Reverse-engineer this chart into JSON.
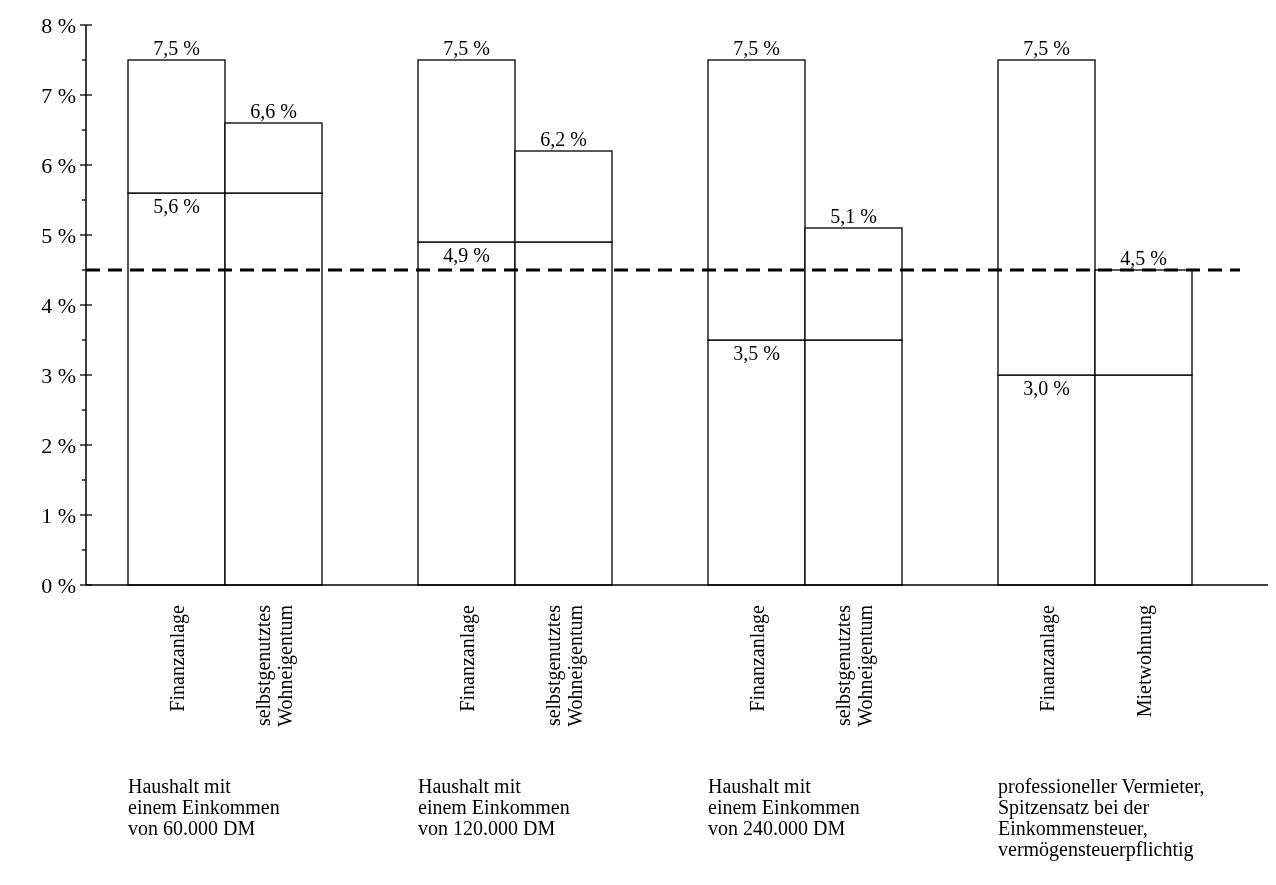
{
  "chart_data": {
    "type": "bar",
    "stacked": true,
    "categories": [
      "Finanzanlage",
      "selbstgenutztes\nWohneigentum",
      "Finanzanlage",
      "selbstgenutztes\nWohneigentum",
      "Finanzanlage",
      "selbstgenutztes\nWohneigentum",
      "Finanzanlage",
      "Mietwohnung"
    ],
    "series": [
      {
        "color": "#ffffff",
        "values": [
          5.6,
          5.6,
          4.9,
          4.9,
          3.5,
          3.5,
          3.0,
          3.0
        ],
        "value_labels": [
          "5,6 %",
          null,
          "4,9 %",
          null,
          "3,5 %",
          null,
          "3,0 %",
          null
        ]
      },
      {
        "color": "#ffffff",
        "values": [
          1.9,
          1.0,
          2.6,
          1.3,
          4.0,
          1.6,
          4.5,
          1.5
        ]
      }
    ],
    "totals": [
      "7,5 %",
      "6,6 %",
      "7,5 %",
      "6,2 %",
      "7,5 %",
      "5,1 %",
      "7,5 %",
      "4,5 %"
    ],
    "ylim": [
      0,
      8
    ],
    "yticks": [
      {
        "value": 0,
        "label": "0 %"
      },
      {
        "value": 0.5,
        "label": null
      },
      {
        "value": 1,
        "label": "1 %"
      },
      {
        "value": 1.5,
        "label": null
      },
      {
        "value": 2,
        "label": "2 %"
      },
      {
        "value": 2.5,
        "label": null
      },
      {
        "value": 3,
        "label": "3 %"
      },
      {
        "value": 3.5,
        "label": null
      },
      {
        "value": 4,
        "label": "4 %"
      },
      {
        "value": 4.5,
        "label": null
      },
      {
        "value": 5,
        "label": "5 %"
      },
      {
        "value": 5.5,
        "label": null
      },
      {
        "value": 6,
        "label": "6 %"
      },
      {
        "value": 6.5,
        "label": null
      },
      {
        "value": 7,
        "label": "7 %"
      },
      {
        "value": 7.5,
        "label": null
      },
      {
        "value": 8,
        "label": "8 %"
      }
    ],
    "ref_lines": [
      {
        "axis": "y",
        "value": 4.5,
        "line_style": "dashed",
        "color": "#000000"
      }
    ],
    "annotations": [
      "Haushalt mit\neinem Einkommen\nvon 60.000 DM",
      "Haushalt mit\neinem Einkommen\nvon 120.000 DM",
      "Haushalt mit\neinem Einkommen\nvon 240.000 DM",
      "professioneller Vermieter,\nSpitzensatz bei der\nEinkommensteuer,\nvermögensteuerpflichtig"
    ],
    "grid": false
  }
}
